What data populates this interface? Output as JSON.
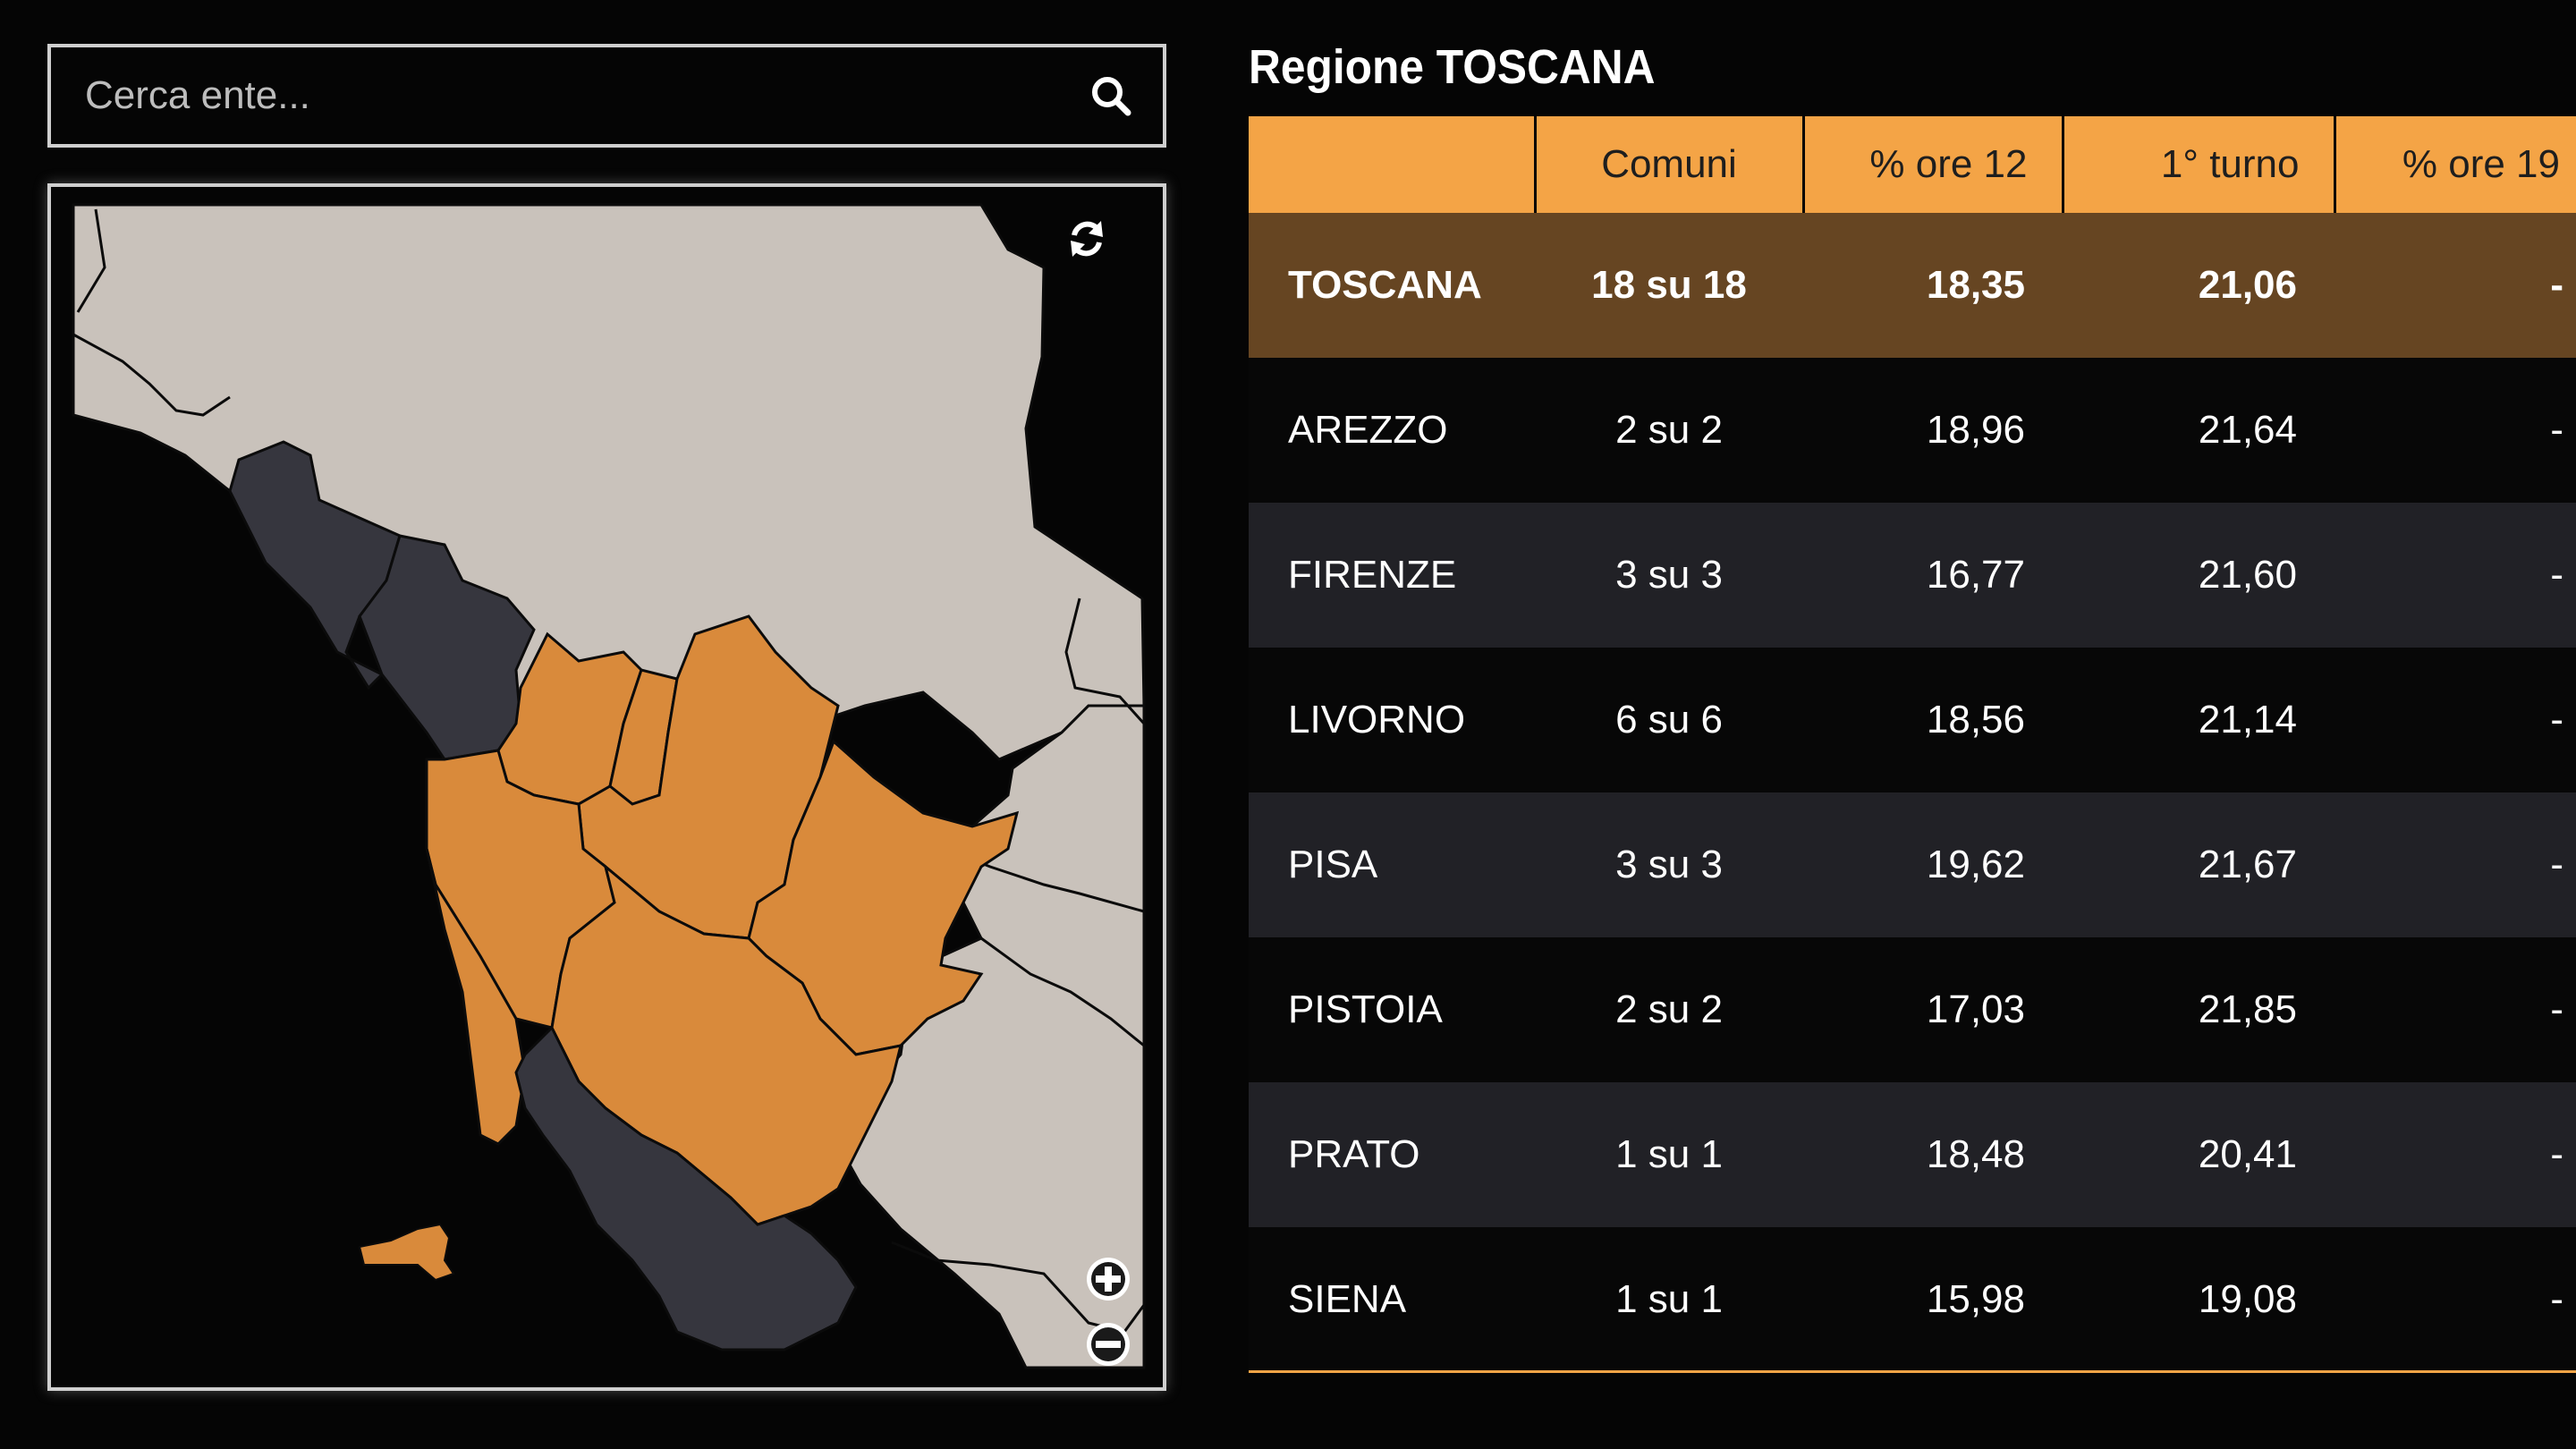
{
  "search": {
    "placeholder": "Cerca ente..."
  },
  "map": {
    "colors": {
      "sea": "#050505",
      "neighbour_regions": "#c9c2bb",
      "reporting_province": "#d98a3b",
      "non_reporting_province": "#36363e",
      "border": "#0b0b0b"
    },
    "icons": {
      "refresh": "refresh-icon",
      "zoom_in": "zoom-in-icon",
      "zoom_out": "zoom-out-icon"
    }
  },
  "results": {
    "title": "Regione TOSCANA",
    "columns": [
      "",
      "Comuni",
      "% ore 12",
      "1° turno",
      "% ore 19"
    ],
    "total": {
      "name": "TOSCANA",
      "comuni": "18 su 18",
      "ore12": "18,35",
      "turno1": "21,06",
      "ore19": "-"
    },
    "rows": [
      {
        "name": "AREZZO",
        "comuni": "2 su 2",
        "ore12": "18,96",
        "turno1": "21,64",
        "ore19": "-"
      },
      {
        "name": "FIRENZE",
        "comuni": "3 su 3",
        "ore12": "16,77",
        "turno1": "21,60",
        "ore19": "-"
      },
      {
        "name": "LIVORNO",
        "comuni": "6 su 6",
        "ore12": "18,56",
        "turno1": "21,14",
        "ore19": "-"
      },
      {
        "name": "PISA",
        "comuni": "3 su 3",
        "ore12": "19,62",
        "turno1": "21,67",
        "ore19": "-"
      },
      {
        "name": "PISTOIA",
        "comuni": "2 su 2",
        "ore12": "17,03",
        "turno1": "21,85",
        "ore19": "-"
      },
      {
        "name": "PRATO",
        "comuni": "1 su 1",
        "ore12": "18,48",
        "turno1": "20,41",
        "ore19": "-"
      },
      {
        "name": "SIENA",
        "comuni": "1 su 1",
        "ore12": "15,98",
        "turno1": "19,08",
        "ore19": "-"
      }
    ],
    "colors": {
      "header": "#f4a446",
      "total_row": "#664522",
      "row_dark": "#070707",
      "row_light": "#212126"
    }
  }
}
